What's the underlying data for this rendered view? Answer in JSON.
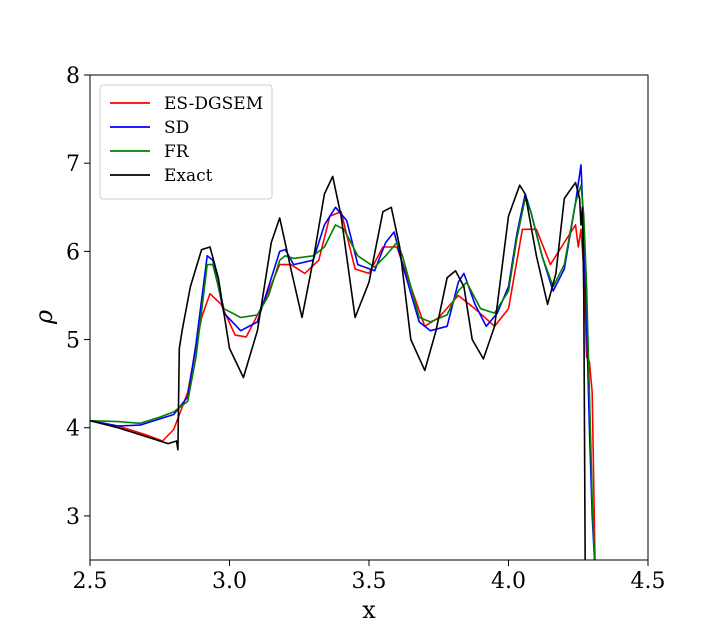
{
  "chart_data": {
    "type": "line",
    "title": "",
    "xlabel": "x",
    "ylabel": "ρ",
    "xlim": [
      2.5,
      4.5
    ],
    "ylim": [
      2.5,
      8
    ],
    "xticks": [
      2.5,
      3.0,
      3.5,
      4.0,
      4.5
    ],
    "xtick_labels": [
      "2.5",
      "3.0",
      "3.5",
      "4.0",
      "4.5"
    ],
    "yticks": [
      3,
      4,
      5,
      6,
      7,
      8
    ],
    "ytick_labels": [
      "3",
      "4",
      "5",
      "6",
      "7",
      "8"
    ],
    "grid": false,
    "legend_position": "top-left",
    "series": [
      {
        "name": "ES-DGSEM",
        "color": "#ff0000",
        "x": [
          2.5,
          2.6,
          2.7,
          2.76,
          2.8,
          2.85,
          2.9,
          2.93,
          2.97,
          3.02,
          3.06,
          3.12,
          3.18,
          3.22,
          3.27,
          3.32,
          3.36,
          3.4,
          3.45,
          3.5,
          3.55,
          3.6,
          3.65,
          3.7,
          3.75,
          3.82,
          3.88,
          3.95,
          4.0,
          4.05,
          4.1,
          4.15,
          4.2,
          4.24,
          4.25,
          4.26,
          4.27,
          4.28,
          4.29,
          4.3,
          4.31,
          4.32
        ],
        "y": [
          4.08,
          4.02,
          3.92,
          3.85,
          3.98,
          4.4,
          5.25,
          5.52,
          5.4,
          5.05,
          5.03,
          5.4,
          5.85,
          5.85,
          5.75,
          5.9,
          6.4,
          6.45,
          5.8,
          5.75,
          6.05,
          6.05,
          5.6,
          5.15,
          5.25,
          5.5,
          5.35,
          5.15,
          5.35,
          6.25,
          6.25,
          5.85,
          6.1,
          6.3,
          6.05,
          6.25,
          5.8,
          4.8,
          4.75,
          4.4,
          2.5,
          2.3
        ]
      },
      {
        "name": "SD",
        "color": "#0000ff",
        "x": [
          2.5,
          2.6,
          2.68,
          2.75,
          2.8,
          2.85,
          2.88,
          2.92,
          2.94,
          2.98,
          3.04,
          3.1,
          3.14,
          3.18,
          3.2,
          3.23,
          3.3,
          3.34,
          3.38,
          3.42,
          3.46,
          3.52,
          3.56,
          3.59,
          3.62,
          3.68,
          3.72,
          3.78,
          3.82,
          3.84,
          3.88,
          3.92,
          3.96,
          4.0,
          4.03,
          4.06,
          4.08,
          4.12,
          4.16,
          4.2,
          4.24,
          4.26,
          4.27,
          4.28,
          4.29,
          4.3,
          4.31
        ],
        "y": [
          4.08,
          4.02,
          4.03,
          4.1,
          4.15,
          4.35,
          4.95,
          5.95,
          5.9,
          5.3,
          5.1,
          5.2,
          5.6,
          6.0,
          6.02,
          5.85,
          5.9,
          6.3,
          6.5,
          6.35,
          5.85,
          5.78,
          6.1,
          6.22,
          5.85,
          5.2,
          5.1,
          5.15,
          5.65,
          5.75,
          5.4,
          5.15,
          5.3,
          5.6,
          6.2,
          6.65,
          6.45,
          5.95,
          5.55,
          5.8,
          6.55,
          6.98,
          6.2,
          5.2,
          4.0,
          3.0,
          2.4
        ]
      },
      {
        "name": "FR",
        "color": "#008000",
        "x": [
          2.5,
          2.6,
          2.68,
          2.75,
          2.8,
          2.85,
          2.88,
          2.92,
          2.94,
          2.98,
          3.04,
          3.1,
          3.14,
          3.18,
          3.2,
          3.23,
          3.3,
          3.34,
          3.38,
          3.41,
          3.46,
          3.52,
          3.56,
          3.6,
          3.62,
          3.68,
          3.72,
          3.78,
          3.82,
          3.85,
          3.9,
          3.95,
          4.0,
          4.03,
          4.06,
          4.08,
          4.12,
          4.16,
          4.2,
          4.24,
          4.26,
          4.27,
          4.28,
          4.29,
          4.3,
          4.31
        ],
        "y": [
          4.08,
          4.07,
          4.05,
          4.12,
          4.18,
          4.3,
          4.8,
          5.85,
          5.85,
          5.35,
          5.25,
          5.28,
          5.5,
          5.9,
          5.95,
          5.92,
          5.95,
          6.05,
          6.3,
          6.25,
          5.95,
          5.82,
          5.95,
          6.1,
          5.95,
          5.25,
          5.2,
          5.28,
          5.55,
          5.65,
          5.35,
          5.3,
          5.55,
          6.15,
          6.6,
          6.45,
          5.95,
          5.6,
          5.85,
          6.55,
          6.75,
          6.4,
          5.6,
          4.4,
          3.2,
          2.4
        ]
      },
      {
        "name": "Exact",
        "color": "#000000",
        "x": [
          2.5,
          2.6,
          2.7,
          2.78,
          2.81,
          2.815,
          2.82,
          2.83,
          2.86,
          2.9,
          2.93,
          2.96,
          3.0,
          3.05,
          3.1,
          3.15,
          3.18,
          3.22,
          3.26,
          3.3,
          3.34,
          3.37,
          3.4,
          3.45,
          3.5,
          3.55,
          3.58,
          3.61,
          3.65,
          3.7,
          3.74,
          3.78,
          3.81,
          3.84,
          3.87,
          3.91,
          3.95,
          4.0,
          4.04,
          4.06,
          4.1,
          4.14,
          4.17,
          4.2,
          4.24,
          4.255,
          4.26,
          4.265,
          4.27,
          4.275
        ],
        "y": [
          4.08,
          4.0,
          3.9,
          3.82,
          3.85,
          3.75,
          4.9,
          5.1,
          5.6,
          6.02,
          6.05,
          5.7,
          4.9,
          4.57,
          5.1,
          6.1,
          6.38,
          5.8,
          5.25,
          5.9,
          6.65,
          6.85,
          6.4,
          5.25,
          5.65,
          6.45,
          6.5,
          6.05,
          5.0,
          4.65,
          5.1,
          5.7,
          5.78,
          5.6,
          5.0,
          4.78,
          5.15,
          6.4,
          6.75,
          6.65,
          5.95,
          5.4,
          5.75,
          6.6,
          6.78,
          6.6,
          6.3,
          6.5,
          5.5,
          2.4
        ]
      }
    ]
  }
}
